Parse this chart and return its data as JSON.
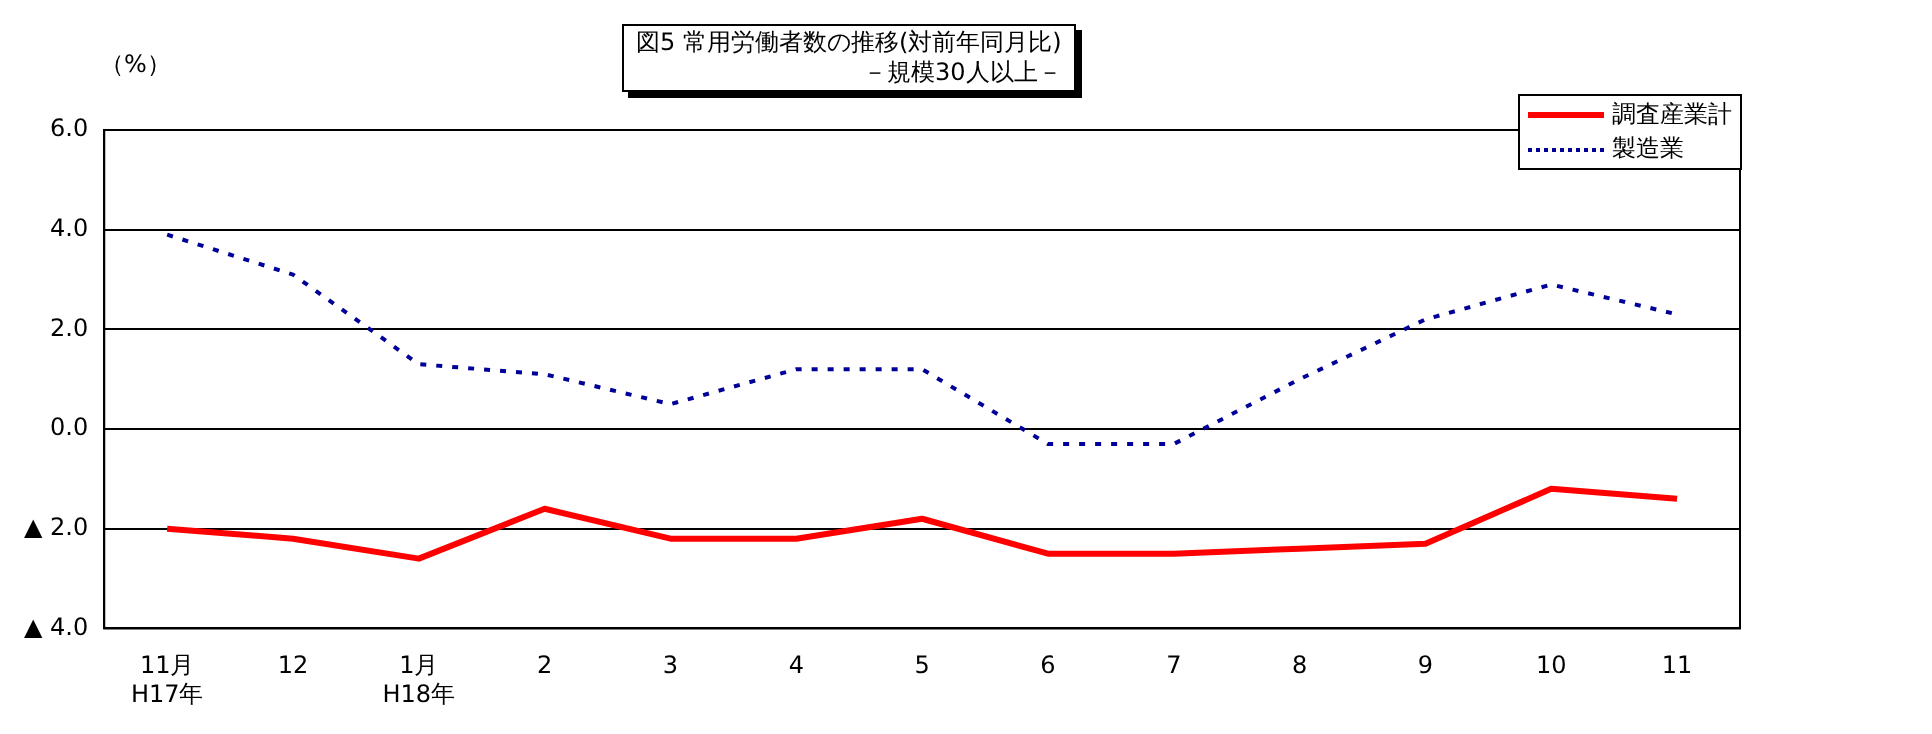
{
  "chart_data": {
    "type": "line",
    "title": "図5  常用労働者数の推移(対前年同月比)",
    "subtitle": "－規模30人以上－",
    "ylabel": "（%）",
    "categories": [
      "11月\nH17年",
      "12",
      "1月\nH18年",
      "2",
      "3",
      "4",
      "5",
      "6",
      "7",
      "8",
      "9",
      "10",
      "11"
    ],
    "series": [
      {
        "name": "調査産業計",
        "color": "#ff0000",
        "line_style": "solid",
        "values": [
          -2.0,
          -2.2,
          -2.6,
          -1.6,
          -2.2,
          -2.2,
          -1.8,
          -2.5,
          -2.5,
          -2.4,
          -2.3,
          -1.2,
          -1.4
        ]
      },
      {
        "name": "製造業",
        "color": "#000099",
        "line_style": "dotted",
        "values": [
          3.9,
          3.1,
          1.3,
          1.1,
          0.5,
          1.2,
          1.2,
          -0.3,
          -0.3,
          1.0,
          2.2,
          2.9,
          2.3
        ]
      }
    ],
    "ylim": [
      -4,
      6
    ],
    "yticks": [
      {
        "value": -4,
        "label": "▲ 4.0"
      },
      {
        "value": -2,
        "label": "▲ 2.0"
      },
      {
        "value": 0,
        "label": "0.0"
      },
      {
        "value": 2,
        "label": "2.0"
      },
      {
        "value": 4,
        "label": "4.0"
      },
      {
        "value": 6,
        "label": "6.0"
      }
    ],
    "grid": "y",
    "legend": "top right",
    "marker": "none"
  }
}
